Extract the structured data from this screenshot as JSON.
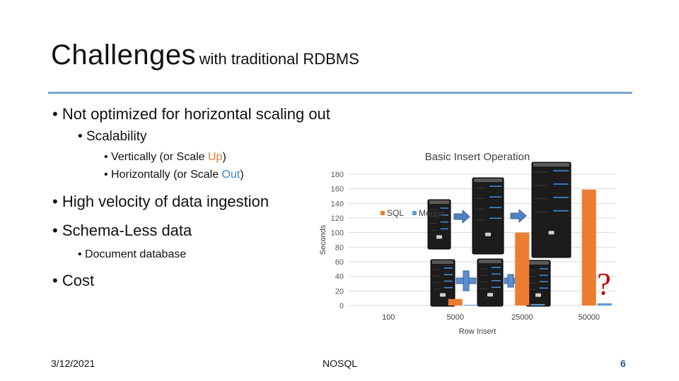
{
  "title": {
    "main": "Challenges",
    "sub": "with traditional RDBMS"
  },
  "bullets": {
    "horizontal": "Not optimized for horizontal scaling out",
    "scalability": "Scalability",
    "vertical_pre": "Vertically (or Scale ",
    "vertical_hl": "Up",
    "vertical_post": ")",
    "horizontal_pre": "Horizontally (or Scale ",
    "horizontal_hl": "Out",
    "horizontal_post": ")",
    "velocity": "High velocity of data ingestion",
    "schema": "Schema-Less data",
    "document": "Document database",
    "cost": "Cost"
  },
  "footer": {
    "date": "3/12/2021",
    "center": "NOSQL",
    "page": "6"
  },
  "chart_data": {
    "type": "bar",
    "title": "Basic Insert Operation",
    "xlabel": "Row Insert",
    "ylabel": "Seconds",
    "ylim": [
      0,
      180
    ],
    "yticks": [
      "0",
      "20",
      "40",
      "60",
      "80",
      "100",
      "120",
      "140",
      "160",
      "180"
    ],
    "categories": [
      "100",
      "5000",
      "25000",
      "50000"
    ],
    "series": [
      {
        "name": "SQL",
        "values": [
          0,
          9,
          100,
          159
        ],
        "color": "#ed7d31"
      },
      {
        "name": "Mongo",
        "values": [
          0,
          1,
          2,
          3
        ],
        "color": "#5b9bd5"
      }
    ],
    "legend": "top-left inside",
    "grid": true,
    "annotations": [
      "?"
    ],
    "icons": [
      "server-icon",
      "plus-icon",
      "arrow-right-icon"
    ]
  }
}
